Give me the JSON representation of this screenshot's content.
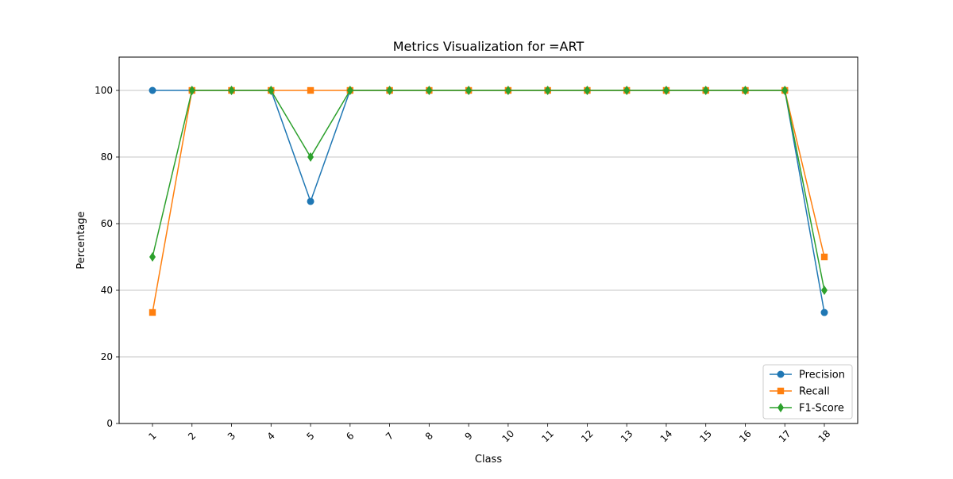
{
  "chart_data": {
    "type": "line",
    "title": "Metrics Visualization for =ART",
    "xlabel": "Class",
    "ylabel": "Percentage",
    "categories": [
      "1",
      "2",
      "3",
      "4",
      "5",
      "6",
      "7",
      "8",
      "9",
      "10",
      "11",
      "12",
      "13",
      "14",
      "15",
      "16",
      "17",
      "18"
    ],
    "ylim": [
      0,
      110
    ],
    "yticks": [
      0,
      20,
      40,
      60,
      80,
      100
    ],
    "grid": "y-axis",
    "legend_position": "lower-right",
    "series": [
      {
        "name": "Precision",
        "color": "#1f77b4",
        "marker": "circle",
        "values": [
          100,
          100,
          100,
          100,
          66.67,
          100,
          100,
          100,
          100,
          100,
          100,
          100,
          100,
          100,
          100,
          100,
          100,
          33.33
        ]
      },
      {
        "name": "Recall",
        "color": "#ff7f0e",
        "marker": "square",
        "values": [
          33.33,
          100,
          100,
          100,
          100,
          100,
          100,
          100,
          100,
          100,
          100,
          100,
          100,
          100,
          100,
          100,
          100,
          50
        ]
      },
      {
        "name": "F1-Score",
        "color": "#2ca02c",
        "marker": "diamond",
        "values": [
          50,
          100,
          100,
          100,
          80,
          100,
          100,
          100,
          100,
          100,
          100,
          100,
          100,
          100,
          100,
          100,
          100,
          40
        ]
      }
    ]
  }
}
